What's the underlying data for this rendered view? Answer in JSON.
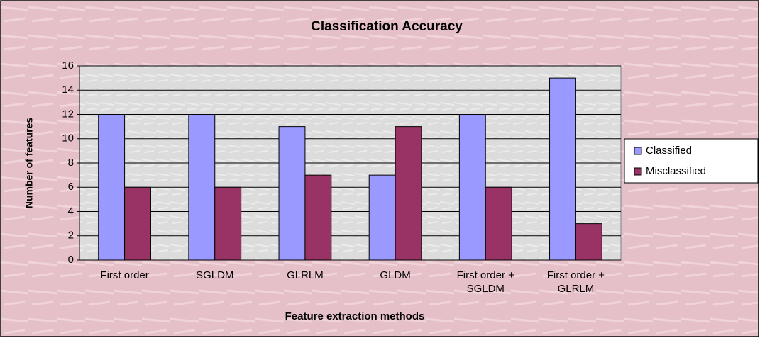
{
  "chart_data": {
    "type": "bar",
    "title": "Classification Accuracy",
    "x_label": "Feature extraction methods",
    "y_label": "Number of features",
    "categories": [
      "First order",
      "SGLDM",
      "GLRLM",
      "GLDM",
      "First order + SGLDM",
      "First order + GLRLM"
    ],
    "series": [
      {
        "name": "Classified",
        "color": "#9999ff",
        "values": [
          12,
          12,
          11,
          7,
          12,
          15
        ]
      },
      {
        "name": "Misclassified",
        "color": "#993366",
        "values": [
          6,
          6,
          7,
          11,
          6,
          3
        ]
      }
    ],
    "ylim": [
      0,
      16
    ],
    "yticks": [
      0,
      2,
      4,
      6,
      8,
      10,
      12,
      14,
      16
    ],
    "grid": true,
    "legend": "right"
  }
}
